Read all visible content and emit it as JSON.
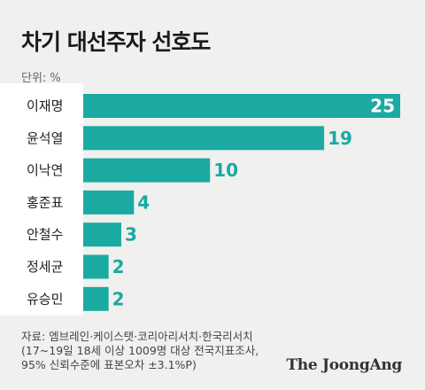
{
  "header": {
    "title": "차기 대선주자 선호도",
    "unit": "단위: %"
  },
  "chart_data": {
    "type": "bar",
    "orientation": "horizontal",
    "title": "차기 대선주자 선호도",
    "unit": "%",
    "categories": [
      "이재명",
      "윤석열",
      "이낙연",
      "홍준표",
      "안철수",
      "정세균",
      "유승민"
    ],
    "values": [
      25,
      19,
      10,
      4,
      3,
      2,
      2
    ],
    "xlim": [
      0,
      25
    ],
    "grid": false,
    "bar_color": "#1aaaa2",
    "value_label_color_inside": "#ffffff",
    "value_label_color_outside": "#1aaaa2"
  },
  "footer": {
    "source_line1": "자료: 엠브레인·케이스탯·코리아리서치·한국리서치",
    "source_line2": "(17~19일 18세 이상 1009명 대상 전국지표조사,",
    "source_line3": "95% 신뢰수준에 표본오차 ±3.1%P)",
    "brand": "The JoongAng"
  }
}
